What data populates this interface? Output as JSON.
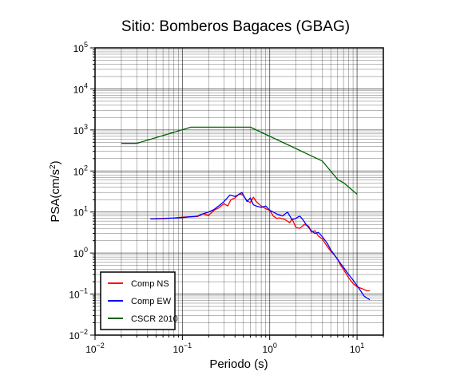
{
  "chart_data": {
    "type": "line",
    "title": "Sitio: Bomberos Bagaces (GBAG)",
    "xlabel": "Periodo (s)",
    "ylabel": {
      "base": "PSA(cm/s",
      "sup": "2",
      "close": ")"
    },
    "xscale": "log",
    "yscale": "log",
    "xlim": [
      0.01,
      20
    ],
    "ylim": [
      0.01,
      100000
    ],
    "grid": true,
    "legend_position": "bottom-left",
    "x_ticks": [
      {
        "base": "10",
        "exp": "−2",
        "value": 0.01
      },
      {
        "base": "10",
        "exp": "−1",
        "value": 0.1
      },
      {
        "base": "10",
        "exp": "0",
        "value": 1
      },
      {
        "base": "10",
        "exp": "1",
        "value": 10
      }
    ],
    "y_ticks": [
      {
        "base": "10",
        "exp": "−2",
        "value": 0.01
      },
      {
        "base": "10",
        "exp": "−1",
        "value": 0.1
      },
      {
        "base": "10",
        "exp": "0",
        "value": 1
      },
      {
        "base": "10",
        "exp": "1",
        "value": 10
      },
      {
        "base": "10",
        "exp": "2",
        "value": 100
      },
      {
        "base": "10",
        "exp": "3",
        "value": 1000
      },
      {
        "base": "10",
        "exp": "4",
        "value": 10000
      },
      {
        "base": "10",
        "exp": "5",
        "value": 100000
      }
    ],
    "series": [
      {
        "name": "Comp NS",
        "color": "#ff0000",
        "x": [
          0.043,
          0.06,
          0.08,
          0.1,
          0.12,
          0.15,
          0.17,
          0.2,
          0.23,
          0.26,
          0.3,
          0.33,
          0.36,
          0.4,
          0.45,
          0.5,
          0.55,
          0.6,
          0.65,
          0.7,
          0.8,
          0.9,
          1.0,
          1.1,
          1.2,
          1.3,
          1.5,
          1.7,
          1.8,
          2.0,
          2.2,
          2.5,
          2.8,
          3.0,
          3.3,
          3.6,
          4.0,
          4.5,
          5.0,
          5.5,
          6.0,
          6.5,
          7.0,
          8.0,
          9.0,
          10.0,
          11.0,
          12.0,
          13.0,
          14.0
        ],
        "y": [
          6.8,
          7.0,
          7.2,
          7.5,
          7.6,
          7.8,
          9.0,
          8.3,
          11.0,
          12.5,
          16.0,
          14.0,
          20.0,
          22.0,
          28.0,
          25.0,
          19.0,
          17.0,
          23.0,
          18.0,
          14.0,
          12.0,
          11.0,
          8.0,
          7.0,
          7.2,
          6.5,
          5.5,
          6.8,
          4.2,
          4.0,
          5.0,
          4.5,
          3.2,
          3.5,
          2.6,
          2.2,
          1.5,
          1.1,
          0.9,
          0.7,
          0.5,
          0.4,
          0.25,
          0.18,
          0.15,
          0.14,
          0.13,
          0.12,
          0.12
        ]
      },
      {
        "name": "Comp EW",
        "color": "#0000ff",
        "x": [
          0.043,
          0.06,
          0.08,
          0.1,
          0.12,
          0.15,
          0.17,
          0.2,
          0.23,
          0.26,
          0.3,
          0.35,
          0.4,
          0.45,
          0.48,
          0.52,
          0.55,
          0.6,
          0.65,
          0.7,
          0.8,
          0.9,
          1.0,
          1.1,
          1.2,
          1.4,
          1.6,
          1.8,
          2.0,
          2.2,
          2.4,
          2.6,
          3.0,
          3.3,
          3.6,
          4.0,
          4.5,
          5.0,
          5.5,
          6.0,
          6.5,
          7.0,
          8.0,
          9.0,
          10.0,
          11.0,
          12.0,
          13.0,
          14.0
        ],
        "y": [
          6.8,
          6.9,
          7.1,
          7.3,
          7.6,
          8.0,
          9.0,
          10.0,
          11.5,
          14.0,
          18.0,
          26.0,
          24.0,
          27.0,
          30.0,
          22.0,
          18.0,
          22.0,
          15.0,
          14.0,
          13.0,
          14.0,
          11.0,
          10.0,
          9.0,
          8.0,
          10.0,
          6.5,
          7.0,
          8.0,
          6.5,
          5.0,
          3.5,
          3.0,
          3.2,
          2.5,
          1.8,
          1.2,
          0.9,
          0.7,
          0.55,
          0.45,
          0.3,
          0.22,
          0.16,
          0.12,
          0.09,
          0.08,
          0.073
        ]
      },
      {
        "name": "CSCR 2010",
        "color": "#006400",
        "x": [
          0.02,
          0.03,
          0.125,
          0.6,
          4.0,
          6.0,
          7.0,
          10.0
        ],
        "y": [
          470,
          470,
          1170,
          1170,
          175,
          62,
          52,
          27
        ]
      }
    ]
  }
}
